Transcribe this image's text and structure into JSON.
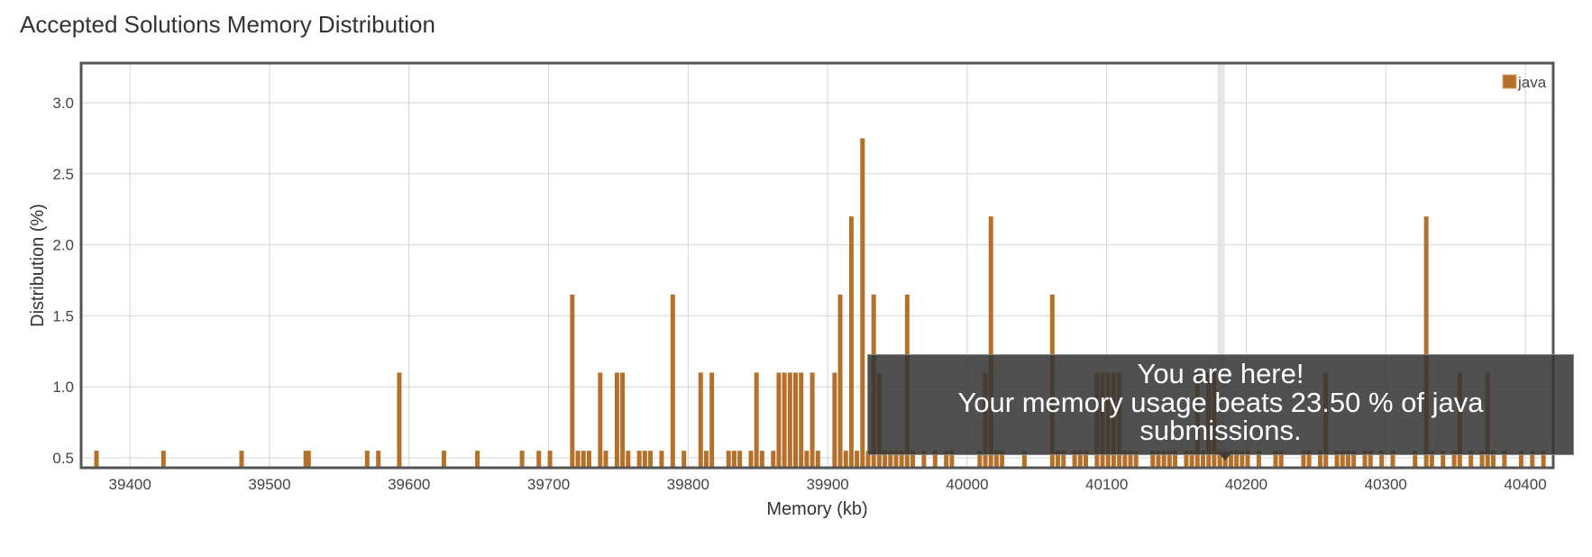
{
  "header": {
    "title": "Accepted Solutions Memory Distribution"
  },
  "chart_data": {
    "type": "bar",
    "title": "Accepted Solutions Memory Distribution",
    "xlabel": "Memory (kb)",
    "ylabel": "Distribution (%)",
    "xlim": [
      39365,
      40420
    ],
    "ylim": [
      0.43,
      3.28
    ],
    "xticks": [
      39400,
      39500,
      39600,
      39700,
      39800,
      39900,
      40000,
      40100,
      40200,
      40300,
      40400
    ],
    "yticks": [
      0.5,
      1.0,
      1.5,
      2.0,
      2.5,
      3.0
    ],
    "xtick_labels": [
      "39400",
      "39500",
      "39600",
      "39700",
      "39800",
      "39900",
      "40000",
      "40100",
      "40200",
      "40300",
      "40400"
    ],
    "ytick_labels": [
      "0.5",
      "1.0",
      "1.5",
      "2.0",
      "2.5",
      "3.0"
    ],
    "grid": true,
    "legend": "top-right",
    "highlight_x": 40182,
    "series": [
      {
        "name": "java",
        "color": "#b5702a",
        "x": [
          39376,
          39424,
          39480,
          39526,
          39528,
          39570,
          39578,
          39593,
          39625,
          39649,
          39681,
          39693,
          39701,
          39717,
          39721,
          39725,
          39729,
          39737,
          39741,
          39749,
          39753,
          39757,
          39765,
          39769,
          39773,
          39781,
          39789,
          39797,
          39809,
          39813,
          39817,
          39829,
          39833,
          39837,
          39845,
          39849,
          39853,
          39861,
          39865,
          39869,
          39873,
          39877,
          39881,
          39885,
          39889,
          39893,
          39905,
          39909,
          39913,
          39917,
          39921,
          39925,
          39929,
          39933,
          39937,
          39941,
          39945,
          39949,
          39953,
          39957,
          39961,
          39969,
          39977,
          39985,
          39989,
          40009,
          40013,
          40017,
          40021,
          40025,
          40041,
          40061,
          40065,
          40069,
          40077,
          40081,
          40085,
          40093,
          40097,
          40101,
          40105,
          40109,
          40113,
          40117,
          40121,
          40133,
          40137,
          40141,
          40145,
          40149,
          40157,
          40161,
          40165,
          40169,
          40173,
          40177,
          40181,
          40185,
          40189,
          40193,
          40197,
          40201,
          40209,
          40221,
          40225,
          40241,
          40245,
          40253,
          40257,
          40265,
          40269,
          40273,
          40277,
          40285,
          40289,
          40297,
          40305,
          40321,
          40329,
          40333,
          40341,
          40349,
          40353,
          40361,
          40369,
          40373,
          40377,
          40385,
          40397,
          40405,
          40413
        ],
        "values": [
          0.55,
          0.55,
          0.55,
          0.55,
          0.55,
          0.55,
          0.55,
          1.1,
          0.55,
          0.55,
          0.55,
          0.55,
          0.55,
          1.65,
          0.55,
          0.55,
          0.55,
          1.1,
          0.55,
          1.1,
          1.1,
          0.55,
          0.55,
          0.55,
          0.55,
          0.55,
          1.65,
          0.55,
          1.1,
          0.55,
          1.1,
          0.55,
          0.55,
          0.55,
          0.55,
          1.1,
          0.55,
          0.55,
          1.1,
          1.1,
          1.1,
          1.1,
          1.1,
          0.55,
          1.1,
          0.55,
          1.1,
          1.65,
          0.55,
          2.2,
          0.55,
          2.75,
          0.55,
          1.65,
          1.1,
          0.55,
          0.55,
          0.55,
          0.55,
          1.65,
          0.55,
          0.55,
          0.55,
          0.55,
          0.55,
          0.55,
          1.1,
          2.2,
          0.55,
          0.55,
          0.55,
          1.65,
          0.55,
          0.55,
          0.55,
          0.55,
          0.55,
          1.1,
          1.1,
          1.1,
          1.1,
          1.1,
          0.55,
          0.55,
          0.55,
          0.55,
          0.55,
          0.55,
          0.55,
          0.55,
          0.55,
          0.55,
          1.1,
          0.55,
          1.1,
          1.1,
          0.55,
          0.55,
          0.55,
          0.55,
          0.55,
          0.55,
          0.55,
          0.55,
          0.55,
          0.55,
          0.55,
          0.55,
          1.1,
          0.55,
          0.55,
          0.55,
          0.55,
          0.55,
          0.55,
          0.55,
          0.55,
          0.55,
          2.2,
          0.55,
          0.55,
          0.55,
          1.1,
          0.55,
          0.55,
          1.1,
          0.55,
          0.55,
          0.55,
          0.55,
          0.55
        ]
      }
    ]
  },
  "tooltip": {
    "line1": "You are here!",
    "line2": "Your memory usage beats 23.50 % of java",
    "line3": "submissions."
  }
}
